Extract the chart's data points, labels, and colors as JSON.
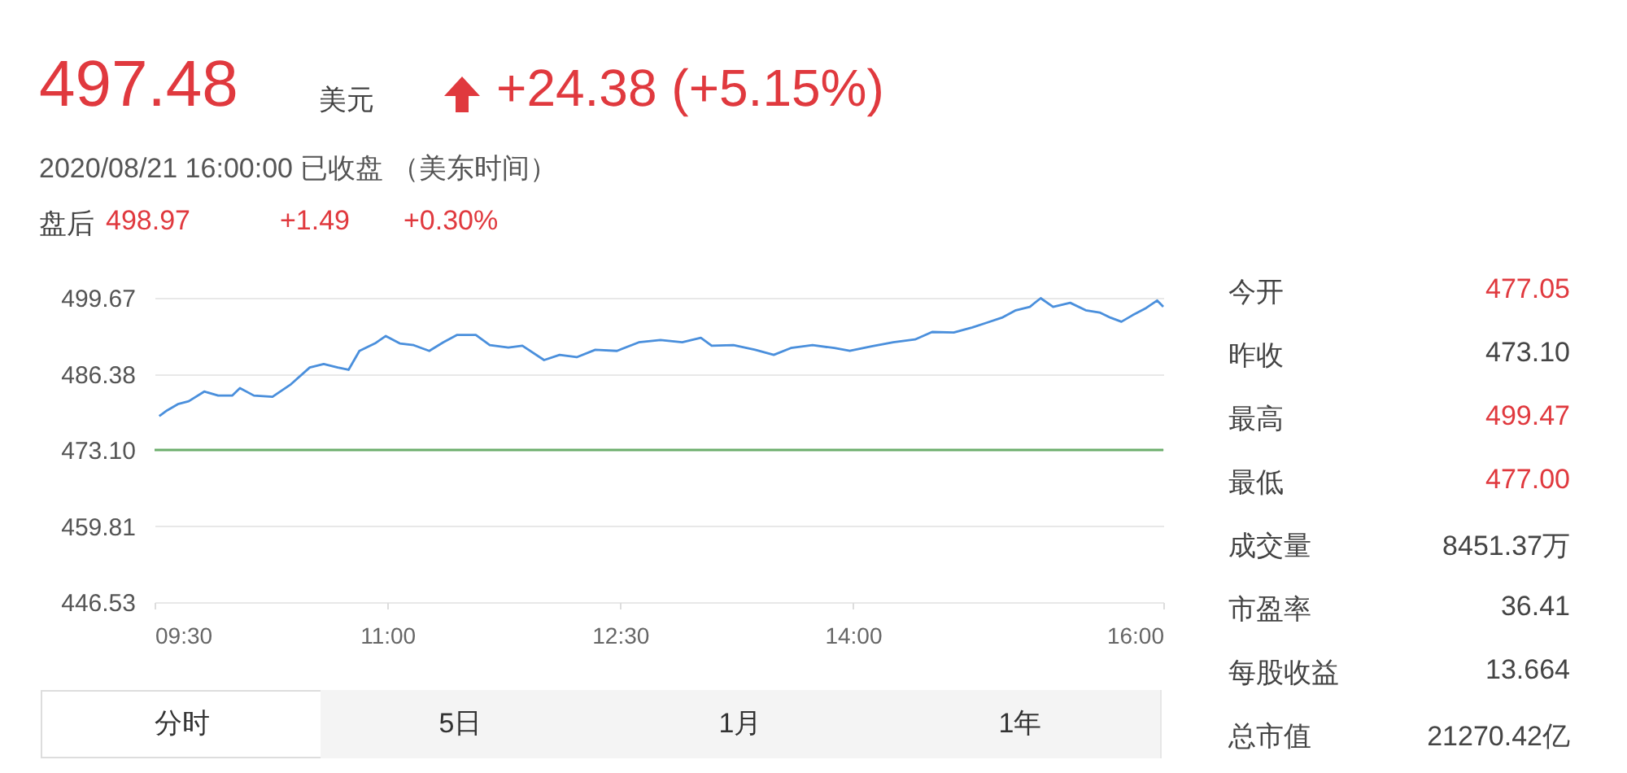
{
  "chart_data": [
    {
      "type": "line",
      "title": "497.48",
      "subtitle": "2020/08/21 16:00:00 已收盘 （美东时间）",
      "annotations": [
        "美元",
        "+24.38 (+5.15%)",
        "盘后",
        "498.97",
        "+1.49",
        "+0.30%",
        "分时",
        "5日",
        "1月",
        "1年"
      ],
      "x": [
        9.53,
        9.58,
        9.65,
        9.72,
        9.82,
        9.91,
        10.0,
        10.05,
        10.14,
        10.26,
        10.38,
        10.5,
        10.59,
        10.68,
        10.75,
        10.82,
        10.92,
        10.99,
        11.08,
        11.17,
        11.27,
        11.36,
        11.45,
        11.57,
        11.66,
        11.78,
        11.87,
        12.01,
        12.11,
        12.22,
        12.34,
        12.48,
        12.62,
        12.76,
        12.9,
        13.02,
        13.09,
        13.23,
        13.37,
        13.49,
        13.6,
        13.74,
        13.88,
        13.98,
        14.12,
        14.26,
        14.4,
        14.51,
        14.65,
        14.77,
        14.86,
        14.96,
        15.05,
        15.14,
        15.21,
        15.29,
        15.4,
        15.5,
        15.59,
        15.66,
        15.73,
        15.8,
        15.89,
        15.96,
        16.0
      ],
      "series": [
        {
          "color": "#4a8fdc",
          "values": [
            479.0,
            480.0,
            481.1,
            481.6,
            483.3,
            482.6,
            482.6,
            483.9,
            482.6,
            482.4,
            484.6,
            487.5,
            488.1,
            487.5,
            487.1,
            490.4,
            491.7,
            493.0,
            491.7,
            491.4,
            490.4,
            491.9,
            493.2,
            493.2,
            491.4,
            491.0,
            491.3,
            488.8,
            489.7,
            489.3,
            490.6,
            490.4,
            491.9,
            492.3,
            491.9,
            492.7,
            491.3,
            491.4,
            490.6,
            489.7,
            490.9,
            491.4,
            490.9,
            490.4,
            491.2,
            491.9,
            492.4,
            493.7,
            493.6,
            494.5,
            495.3,
            496.2,
            497.5,
            498.1,
            499.6,
            498.1,
            498.8,
            497.5,
            497.1,
            496.2,
            495.5,
            496.6,
            497.9,
            499.2,
            498.1
          ]
        }
      ],
      "xlim": [
        9.5,
        16
      ],
      "xticks": [
        {
          "value": 9.5,
          "label": "09:30"
        },
        {
          "value": 11,
          "label": "11:00"
        },
        {
          "value": 12.5,
          "label": "12:30"
        },
        {
          "value": 14,
          "label": "14:00"
        },
        {
          "value": 16,
          "label": "16:00"
        }
      ],
      "ylim": [
        446.53,
        499.67
      ],
      "yticks": [
        {
          "value": 446.53,
          "label": "446.53"
        },
        {
          "value": 459.81,
          "label": "459.81"
        },
        {
          "value": 473.1,
          "label": "473.10"
        },
        {
          "value": 486.38,
          "label": "486.38"
        },
        {
          "value": 499.67,
          "label": "499.67"
        }
      ],
      "ref_lines": [
        {
          "axis": "y",
          "value": 473.1,
          "color": "#6cae6c"
        }
      ],
      "grid": "y",
      "line_style": "solid",
      "marker": "none"
    },
    {
      "type": "other",
      "annotations": [
        "今开",
        "477.05",
        "昨收",
        "473.10",
        "最高",
        "499.47",
        "最低",
        "477.00",
        "成交量",
        "8451.37万",
        "市盈率",
        "36.41",
        "每股收益",
        "13.664",
        "总市值",
        "21270.42亿"
      ]
    }
  ]
}
